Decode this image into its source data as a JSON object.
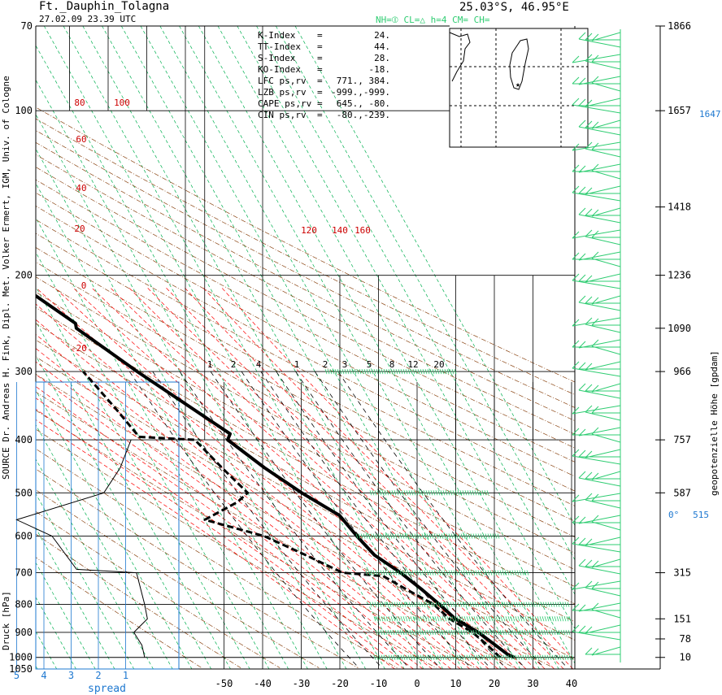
{
  "header": {
    "station": "Ft._Dauphin_Tolagna",
    "datetime": "27.02.09  23.39 UTC",
    "coords": "25.03°S, 46.95°E",
    "cloud_legend": "NH=⦶  CL=△  h=4   CM=    CH="
  },
  "source_label": "SOURCE Dr. Andreas H. Fink, Dipl. Met. Volker Ermert, IGM, Univ. of Cologne",
  "right_axis_label": "geopotenzielle Höhe [gpdam]",
  "indices": [
    {
      "name": "K-Index",
      "value": "24."
    },
    {
      "name": "TT-Index",
      "value": "44."
    },
    {
      "name": "S-Index",
      "value": "28."
    },
    {
      "name": "KO-Index",
      "value": "-18."
    },
    {
      "name": "LFC  ps,rv",
      "value": "771., 384."
    },
    {
      "name": "LZB  ps,rv",
      "value": "-999.,-999."
    },
    {
      "name": "CAPE ps,rv",
      "value": "645., -80."
    },
    {
      "name": "CIN  ps,rv",
      "value": "-80.,-239."
    }
  ],
  "colors": {
    "temperature": "#000000",
    "dewpoint": "#000000",
    "dry_adiabat": "#8b4513",
    "moist_adiabat": "#ff0000",
    "mixing_ratio": "#000000",
    "isotherm_diag": "#00b050",
    "wind_barb": "#2ecc71",
    "spread": "#1e78d0",
    "freezing": "#1e78d0"
  },
  "chart_data": {
    "type": "line",
    "title": "",
    "xlabel": "",
    "ylabel": "Druck [hPa]",
    "x_ticks": [
      -50,
      -40,
      -30,
      -20,
      -10,
      0,
      10,
      20,
      30,
      40
    ],
    "pressure_levels": [
      70,
      100,
      200,
      300,
      400,
      500,
      600,
      700,
      800,
      900,
      1000,
      1050
    ],
    "geopotential_height_labels": [
      {
        "p": 70,
        "label": "1866"
      },
      {
        "p": 100,
        "label": "1657"
      },
      {
        "p": 150,
        "label": "1418"
      },
      {
        "p": 200,
        "label": "1236"
      },
      {
        "p": 250,
        "label": "1090"
      },
      {
        "p": 300,
        "label": "966"
      },
      {
        "p": 400,
        "label": "757"
      },
      {
        "p": 500,
        "label": "587"
      },
      {
        "p": 700,
        "label": "315"
      },
      {
        "p": 850,
        "label": "151"
      },
      {
        "p": 925,
        "label": "78"
      },
      {
        "p": 1000,
        "label": "10"
      }
    ],
    "tropopause_label": "1647",
    "freezing_level": {
      "p": 548,
      "label": "0°",
      "height": "515"
    },
    "mixing_ratio_labels": [
      "1",
      "2",
      "4",
      "1",
      "2",
      "3",
      "5",
      "8",
      "12",
      "20"
    ],
    "dry_adiabat_labels": [
      "80",
      "100",
      "60",
      "40",
      "20",
      "0",
      "-20"
    ],
    "moist_adiabat_labels": [
      "120",
      "140",
      "160"
    ],
    "spread_axis": {
      "label": "spread",
      "ticks": [
        "5",
        "4",
        "3",
        "2",
        "1"
      ],
      "range": [
        0,
        5
      ]
    },
    "series": [
      {
        "name": "temperature",
        "points": [
          {
            "p": 1000,
            "t": 25.2
          },
          {
            "p": 990,
            "t": 24.0
          },
          {
            "p": 900,
            "t": 19.5
          },
          {
            "p": 850,
            "t": 15.5
          },
          {
            "p": 800,
            "t": 13.5
          },
          {
            "p": 750,
            "t": 11.0
          },
          {
            "p": 700,
            "t": 8.0
          },
          {
            "p": 650,
            "t": 3.8
          },
          {
            "p": 600,
            "t": 2.0
          },
          {
            "p": 550,
            "t": 0.5
          },
          {
            "p": 500,
            "t": -6.0
          },
          {
            "p": 450,
            "t": -12.0
          },
          {
            "p": 400,
            "t": -17.5
          },
          {
            "p": 390,
            "t": -16.0
          },
          {
            "p": 300,
            "t": -31.0
          },
          {
            "p": 250,
            "t": -40.5
          },
          {
            "p": 245,
            "t": -40.0
          },
          {
            "p": 200,
            "t": -51.0
          },
          {
            "p": 180,
            "t": -55.0
          },
          {
            "p": 150,
            "t": -61.0
          },
          {
            "p": 120,
            "t": -70.0
          },
          {
            "p": 110,
            "t": -71.5
          },
          {
            "p": 100,
            "t": -72.5
          },
          {
            "p": 95,
            "t": -71.5
          },
          {
            "p": 80,
            "t": -71.5
          },
          {
            "p": 70,
            "t": -73.0
          }
        ]
      },
      {
        "name": "dewpoint",
        "points": [
          {
            "p": 1000,
            "t": 21.5
          },
          {
            "p": 950,
            "t": 20.0
          },
          {
            "p": 900,
            "t": 18.0
          },
          {
            "p": 850,
            "t": 14.0
          },
          {
            "p": 800,
            "t": 12.0
          },
          {
            "p": 750,
            "t": 7.0
          },
          {
            "p": 710,
            "t": 3.0
          },
          {
            "p": 700,
            "t": -7.0
          },
          {
            "p": 650,
            "t": -14.0
          },
          {
            "p": 600,
            "t": -22.0
          },
          {
            "p": 560,
            "t": -35.0
          },
          {
            "p": 520,
            "t": -24.0
          },
          {
            "p": 500,
            "t": -20.0
          },
          {
            "p": 450,
            "t": -23.0
          },
          {
            "p": 400,
            "t": -26.0
          },
          {
            "p": 395,
            "t": -40.0
          },
          {
            "p": 350,
            "t": -42.0
          },
          {
            "p": 300,
            "t": -45.0
          }
        ]
      }
    ],
    "spread_profile": [
      {
        "p": 400,
        "s": 0.8
      },
      {
        "p": 450,
        "s": 1.2
      },
      {
        "p": 500,
        "s": 1.8
      },
      {
        "p": 560,
        "s": 5.0
      },
      {
        "p": 600,
        "s": 3.7
      },
      {
        "p": 690,
        "s": 2.8
      },
      {
        "p": 700,
        "s": 0.6
      },
      {
        "p": 800,
        "s": 0.3
      },
      {
        "p": 850,
        "s": 0.2
      },
      {
        "p": 900,
        "s": 0.7
      },
      {
        "p": 950,
        "s": 0.4
      },
      {
        "p": 1000,
        "s": 0.3
      }
    ]
  }
}
